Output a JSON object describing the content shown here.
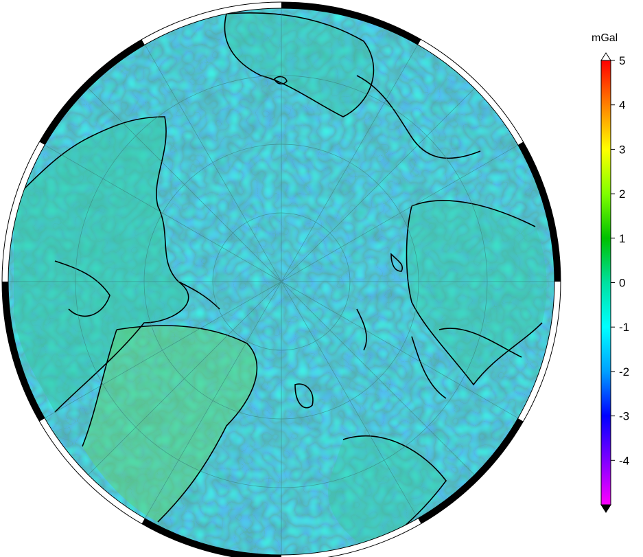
{
  "colorbar": {
    "unit": "mGal",
    "ticks": [
      "5",
      "4",
      "3",
      "2",
      "1",
      "0",
      "-1",
      "-2",
      "-3",
      "-4"
    ],
    "colors": [
      "#ff00ff",
      "#8000ff",
      "#0000ff",
      "#00a0ff",
      "#00ffff",
      "#00e0a0",
      "#00c000",
      "#80ff00",
      "#ffff00",
      "#ff8000",
      "#ff0000"
    ]
  },
  "map": {
    "projection": "polar stereographic (north pole)",
    "ocean_color": "#40d9c0",
    "frame_colors": [
      "#000000",
      "#ffffff"
    ],
    "coastline_color": "#000000",
    "graticule_color": "#3a7f7a"
  }
}
